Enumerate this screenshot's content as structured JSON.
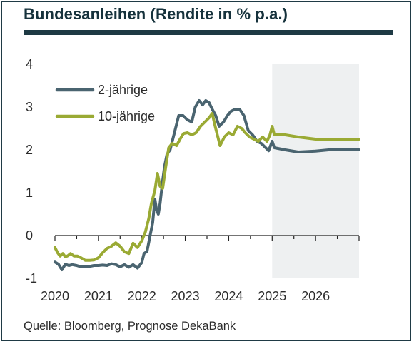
{
  "title": "Bundesanleihen (Rendite in % p.a.)",
  "source": "Quelle: Bloomberg, Prognose DekaBank",
  "chart_data": {
    "type": "line",
    "title": "Bundesanleihen (Rendite in % p.a.)",
    "xlabel": "",
    "ylabel": "",
    "xlim": [
      2020.0,
      2027.0
    ],
    "ylim": [
      -1,
      4
    ],
    "y_ticks": [
      "-1",
      "0",
      "1",
      "2",
      "3",
      "4"
    ],
    "x_ticks": [
      {
        "value": 2020,
        "label": "2020"
      },
      {
        "value": 2021,
        "label": "2021"
      },
      {
        "value": 2022,
        "label": "2022"
      },
      {
        "value": 2023,
        "label": "2023"
      },
      {
        "value": 2024,
        "label": "2024"
      },
      {
        "value": 2025,
        "label": "2025"
      },
      {
        "value": 2026,
        "label": "2026"
      }
    ],
    "grid": false,
    "legend_position": "top-left",
    "forecast_shading": {
      "from": 2025.0,
      "to": 2027.0,
      "color": "#eef0f1"
    },
    "series": [
      {
        "name": "2-jährige",
        "color": "#4a6470",
        "points": [
          [
            2020.0,
            -0.62
          ],
          [
            2020.08,
            -0.67
          ],
          [
            2020.16,
            -0.8
          ],
          [
            2020.24,
            -0.67
          ],
          [
            2020.32,
            -0.7
          ],
          [
            2020.4,
            -0.68
          ],
          [
            2020.5,
            -0.7
          ],
          [
            2020.6,
            -0.73
          ],
          [
            2020.7,
            -0.73
          ],
          [
            2020.8,
            -0.72
          ],
          [
            2020.9,
            -0.7
          ],
          [
            2021.0,
            -0.7
          ],
          [
            2021.1,
            -0.69
          ],
          [
            2021.2,
            -0.7
          ],
          [
            2021.3,
            -0.66
          ],
          [
            2021.4,
            -0.68
          ],
          [
            2021.5,
            -0.73
          ],
          [
            2021.6,
            -0.68
          ],
          [
            2021.7,
            -0.74
          ],
          [
            2021.8,
            -0.68
          ],
          [
            2021.9,
            -0.76
          ],
          [
            2022.0,
            -0.63
          ],
          [
            2022.05,
            -0.42
          ],
          [
            2022.12,
            -0.37
          ],
          [
            2022.2,
            0.05
          ],
          [
            2022.25,
            0.3
          ],
          [
            2022.3,
            0.85
          ],
          [
            2022.34,
            0.6
          ],
          [
            2022.38,
            0.5
          ],
          [
            2022.42,
            0.75
          ],
          [
            2022.47,
            1.2
          ],
          [
            2022.52,
            1.6
          ],
          [
            2022.58,
            1.9
          ],
          [
            2022.65,
            2.0
          ],
          [
            2022.75,
            2.4
          ],
          [
            2022.85,
            2.8
          ],
          [
            2022.95,
            2.8
          ],
          [
            2023.05,
            2.7
          ],
          [
            2023.15,
            2.65
          ],
          [
            2023.23,
            3.0
          ],
          [
            2023.32,
            3.15
          ],
          [
            2023.4,
            3.05
          ],
          [
            2023.47,
            3.15
          ],
          [
            2023.55,
            3.1
          ],
          [
            2023.62,
            2.95
          ],
          [
            2023.7,
            2.8
          ],
          [
            2023.78,
            2.55
          ],
          [
            2023.88,
            2.65
          ],
          [
            2023.97,
            2.8
          ],
          [
            2024.05,
            2.9
          ],
          [
            2024.15,
            2.95
          ],
          [
            2024.25,
            2.95
          ],
          [
            2024.35,
            2.8
          ],
          [
            2024.45,
            2.45
          ],
          [
            2024.55,
            2.35
          ],
          [
            2024.65,
            2.2
          ],
          [
            2024.75,
            2.15
          ],
          [
            2024.85,
            2.05
          ],
          [
            2024.92,
            1.98
          ],
          [
            2025.0,
            2.2
          ],
          [
            2025.05,
            2.05
          ],
          [
            2025.3,
            2.0
          ],
          [
            2025.6,
            1.95
          ],
          [
            2026.0,
            1.97
          ],
          [
            2026.3,
            2.0
          ],
          [
            2026.6,
            2.0
          ],
          [
            2027.0,
            2.0
          ]
        ]
      },
      {
        "name": "10-jährige",
        "color": "#9aaa34",
        "points": [
          [
            2020.0,
            -0.28
          ],
          [
            2020.06,
            -0.4
          ],
          [
            2020.12,
            -0.48
          ],
          [
            2020.18,
            -0.42
          ],
          [
            2020.24,
            -0.5
          ],
          [
            2020.3,
            -0.47
          ],
          [
            2020.36,
            -0.42
          ],
          [
            2020.44,
            -0.48
          ],
          [
            2020.52,
            -0.48
          ],
          [
            2020.6,
            -0.52
          ],
          [
            2020.7,
            -0.58
          ],
          [
            2020.8,
            -0.58
          ],
          [
            2020.9,
            -0.57
          ],
          [
            2021.0,
            -0.52
          ],
          [
            2021.1,
            -0.4
          ],
          [
            2021.2,
            -0.3
          ],
          [
            2021.3,
            -0.25
          ],
          [
            2021.4,
            -0.17
          ],
          [
            2021.5,
            -0.25
          ],
          [
            2021.6,
            -0.38
          ],
          [
            2021.7,
            -0.42
          ],
          [
            2021.8,
            -0.18
          ],
          [
            2021.9,
            -0.28
          ],
          [
            2022.0,
            -0.12
          ],
          [
            2022.08,
            0.08
          ],
          [
            2022.16,
            0.4
          ],
          [
            2022.22,
            0.75
          ],
          [
            2022.3,
            1.05
          ],
          [
            2022.36,
            1.45
          ],
          [
            2022.42,
            1.15
          ],
          [
            2022.48,
            1.1
          ],
          [
            2022.55,
            1.6
          ],
          [
            2022.62,
            2.05
          ],
          [
            2022.7,
            2.15
          ],
          [
            2022.8,
            2.1
          ],
          [
            2022.88,
            2.25
          ],
          [
            2022.96,
            2.38
          ],
          [
            2023.05,
            2.4
          ],
          [
            2023.15,
            2.35
          ],
          [
            2023.25,
            2.4
          ],
          [
            2023.35,
            2.55
          ],
          [
            2023.45,
            2.65
          ],
          [
            2023.55,
            2.75
          ],
          [
            2023.62,
            2.85
          ],
          [
            2023.7,
            2.5
          ],
          [
            2023.8,
            2.1
          ],
          [
            2023.9,
            2.3
          ],
          [
            2024.0,
            2.4
          ],
          [
            2024.1,
            2.35
          ],
          [
            2024.2,
            2.55
          ],
          [
            2024.3,
            2.5
          ],
          [
            2024.38,
            2.4
          ],
          [
            2024.48,
            2.3
          ],
          [
            2024.58,
            2.25
          ],
          [
            2024.68,
            2.2
          ],
          [
            2024.78,
            2.3
          ],
          [
            2024.88,
            2.2
          ],
          [
            2024.95,
            2.35
          ],
          [
            2025.0,
            2.55
          ],
          [
            2025.05,
            2.35
          ],
          [
            2025.3,
            2.35
          ],
          [
            2025.6,
            2.3
          ],
          [
            2026.0,
            2.25
          ],
          [
            2026.3,
            2.25
          ],
          [
            2026.6,
            2.25
          ],
          [
            2027.0,
            2.25
          ]
        ]
      }
    ]
  }
}
